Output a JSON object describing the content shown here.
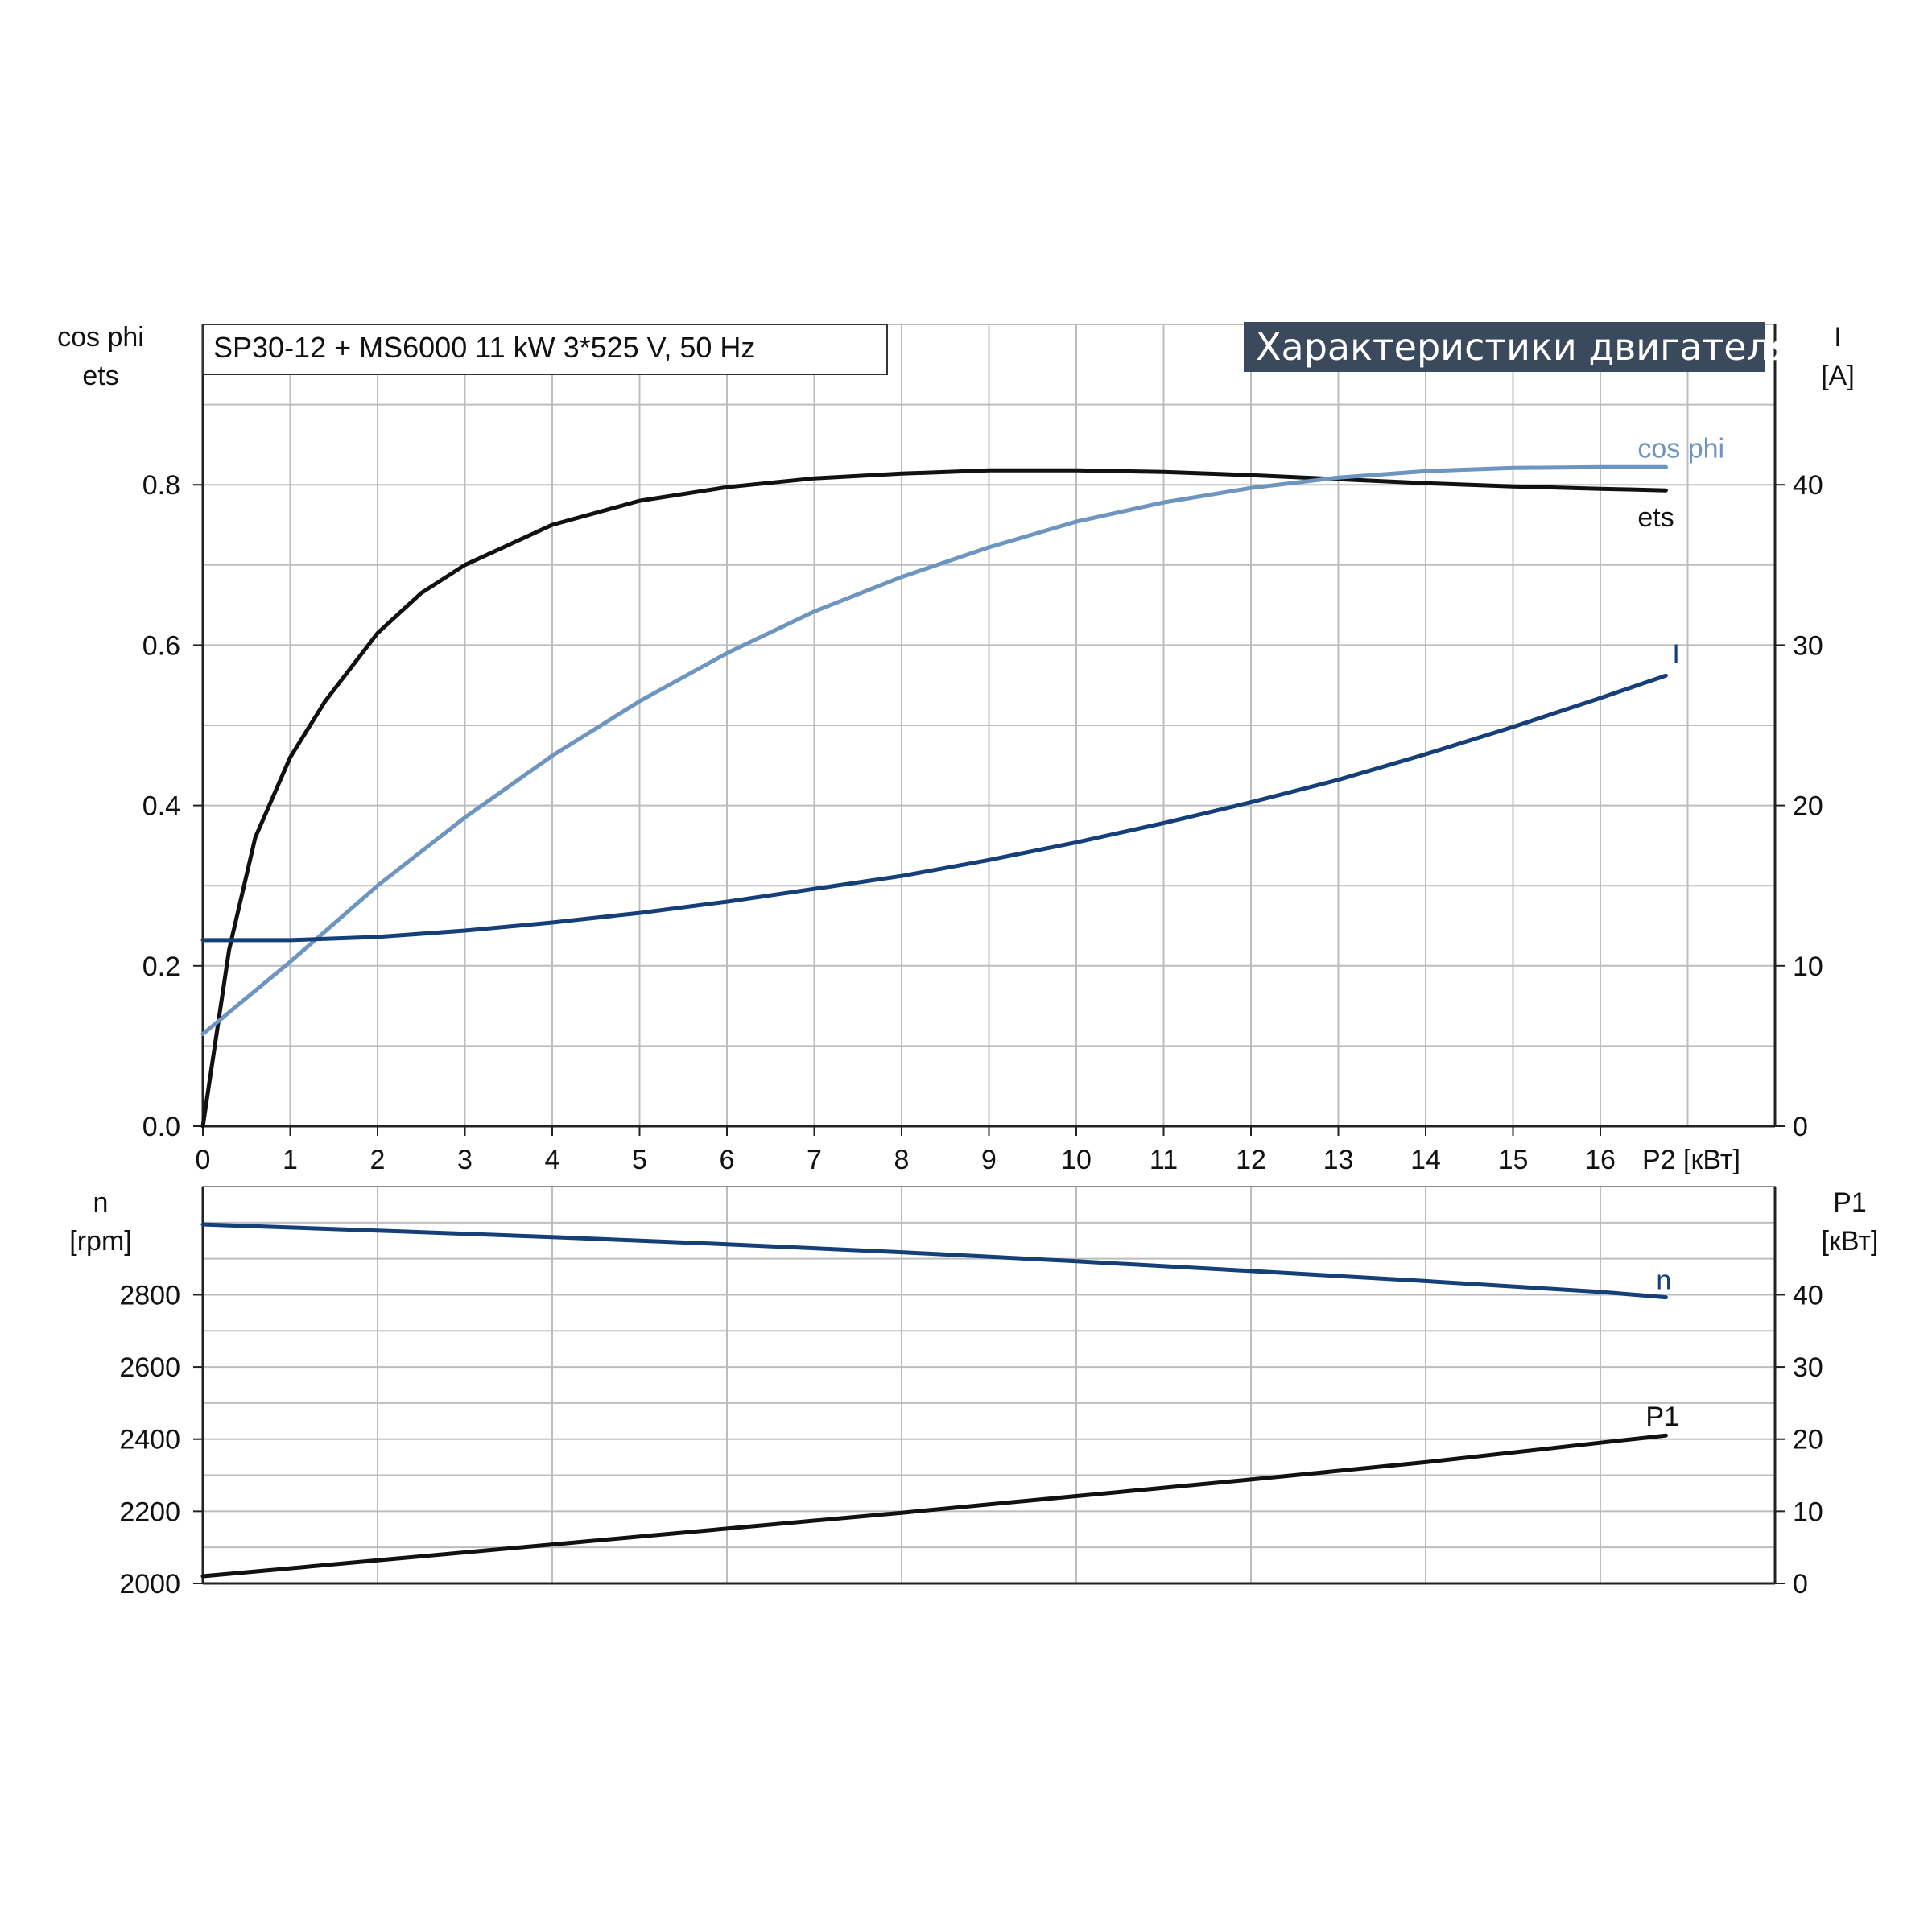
{
  "chart_data": [
    {
      "type": "line",
      "title": "Характеристики двигателя",
      "subtitle": "SP30-12 + MS6000   11 kW   3*525 V, 50 Hz",
      "xlabel": "P2 [кВт]",
      "ylabel_left": [
        "cos phi",
        "ets"
      ],
      "ylabel_right": [
        "I",
        "[A]"
      ],
      "xlim": [
        0,
        17
      ],
      "ylim_left": [
        0,
        1.0
      ],
      "ylim_right": [
        0,
        50
      ],
      "x_ticks": [
        "0",
        "1",
        "2",
        "3",
        "4",
        "5",
        "6",
        "7",
        "8",
        "9",
        "10",
        "11",
        "12",
        "13",
        "14",
        "15",
        "16"
      ],
      "y_ticks_left": [
        "0.0",
        "0.2",
        "0.4",
        "0.6",
        "0.8"
      ],
      "y_ticks_right": [
        "0",
        "10",
        "20",
        "30",
        "40"
      ],
      "grid": true,
      "series": [
        {
          "name": "ets",
          "axis": "left",
          "color": "#111111",
          "points": [
            [
              0,
              0
            ],
            [
              0.3,
              0.22
            ],
            [
              0.6,
              0.36
            ],
            [
              1,
              0.46
            ],
            [
              1.4,
              0.53
            ],
            [
              2,
              0.615
            ],
            [
              2.5,
              0.665
            ],
            [
              3,
              0.7
            ],
            [
              4,
              0.75
            ],
            [
              5,
              0.78
            ],
            [
              6,
              0.797
            ],
            [
              7,
              0.808
            ],
            [
              8,
              0.814
            ],
            [
              9,
              0.818
            ],
            [
              10,
              0.818
            ],
            [
              11,
              0.816
            ],
            [
              12,
              0.812
            ],
            [
              13,
              0.807
            ],
            [
              14,
              0.802
            ],
            [
              15,
              0.798
            ],
            [
              16,
              0.795
            ],
            [
              16.75,
              0.793
            ]
          ]
        },
        {
          "name": "cos phi",
          "axis": "left",
          "color": "#6d95c0",
          "points": [
            [
              0,
              0.115
            ],
            [
              1,
              0.205
            ],
            [
              2,
              0.3
            ],
            [
              3,
              0.385
            ],
            [
              4,
              0.462
            ],
            [
              5,
              0.53
            ],
            [
              6,
              0.59
            ],
            [
              7,
              0.642
            ],
            [
              8,
              0.685
            ],
            [
              9,
              0.722
            ],
            [
              10,
              0.754
            ],
            [
              11,
              0.778
            ],
            [
              12,
              0.796
            ],
            [
              13,
              0.809
            ],
            [
              14,
              0.817
            ],
            [
              15,
              0.821
            ],
            [
              16,
              0.822
            ],
            [
              16.75,
              0.822
            ]
          ]
        },
        {
          "name": "I",
          "axis": "right",
          "color": "#143f78",
          "points": [
            [
              0,
              11.6
            ],
            [
              1,
              11.6
            ],
            [
              2,
              11.8
            ],
            [
              3,
              12.2
            ],
            [
              4,
              12.7
            ],
            [
              5,
              13.3
            ],
            [
              6,
              14.0
            ],
            [
              7,
              14.8
            ],
            [
              8,
              15.6
            ],
            [
              9,
              16.6
            ],
            [
              10,
              17.7
            ],
            [
              11,
              18.9
            ],
            [
              12,
              20.2
            ],
            [
              13,
              21.6
            ],
            [
              14,
              23.2
            ],
            [
              15,
              24.9
            ],
            [
              16,
              26.7
            ],
            [
              16.75,
              28.1
            ]
          ]
        }
      ]
    },
    {
      "type": "line",
      "xlim": [
        0,
        17
      ],
      "ylabel_left": [
        "n",
        "[rpm]"
      ],
      "ylabel_right": [
        "P1",
        "[кВт]"
      ],
      "ylim_left": [
        2000,
        3100
      ],
      "ylim_right": [
        0,
        55
      ],
      "y_ticks_left": [
        "2000",
        "2200",
        "2400",
        "2600",
        "2800"
      ],
      "y_ticks_right": [
        "0",
        "10",
        "20",
        "30",
        "40"
      ],
      "grid": true,
      "series": [
        {
          "name": "n",
          "axis": "left",
          "color": "#143f78",
          "points": [
            [
              0,
              2995
            ],
            [
              2,
              2978
            ],
            [
              4,
              2960
            ],
            [
              6,
              2940
            ],
            [
              8,
              2918
            ],
            [
              10,
              2893
            ],
            [
              12,
              2866
            ],
            [
              14,
              2838
            ],
            [
              16,
              2808
            ],
            [
              16.75,
              2793
            ]
          ]
        },
        {
          "name": "P1",
          "axis": "right",
          "color": "#111111",
          "points": [
            [
              0,
              1.0
            ],
            [
              2,
              3.2
            ],
            [
              4,
              5.4
            ],
            [
              6,
              7.6
            ],
            [
              8,
              9.8
            ],
            [
              10,
              12.1
            ],
            [
              12,
              14.4
            ],
            [
              14,
              16.8
            ],
            [
              16,
              19.5
            ],
            [
              16.75,
              20.5
            ]
          ]
        }
      ]
    }
  ]
}
